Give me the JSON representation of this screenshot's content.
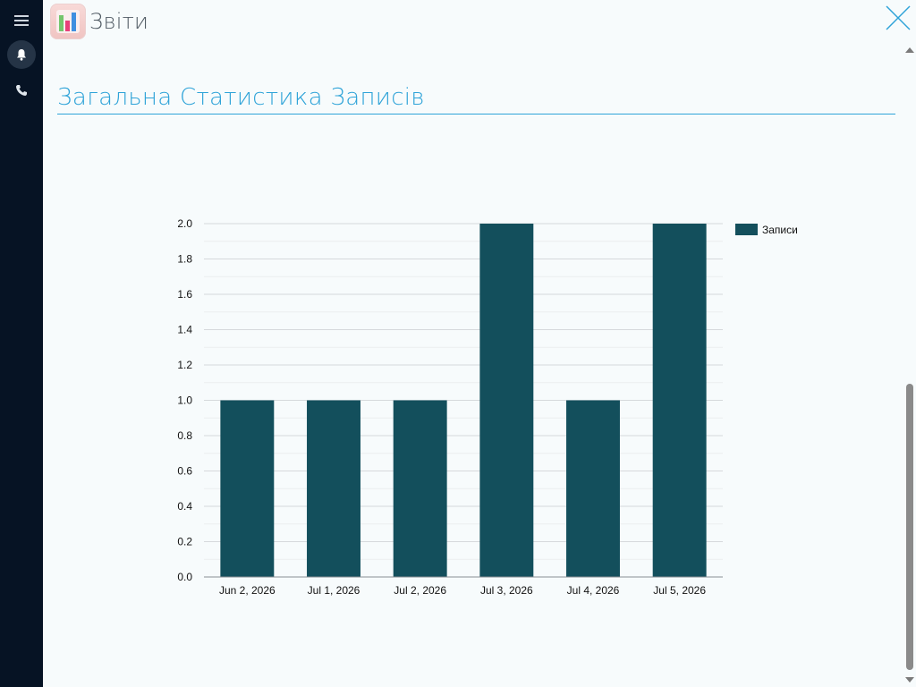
{
  "header": {
    "title": "Звіти",
    "icons": [
      "menu-icon",
      "bell-icon",
      "phone-icon",
      "reports-app-icon",
      "close-icon"
    ]
  },
  "section": {
    "title": "Загальна Статистика Записів"
  },
  "colors": {
    "sidebar": "#061324",
    "accent": "#2ea3d8",
    "bar": "#134f5c",
    "background": "#f7fbfc"
  },
  "chart_data": {
    "type": "bar",
    "categories": [
      "Jun 2, 2026",
      "Jul 1, 2026",
      "Jul 2, 2026",
      "Jul 3, 2026",
      "Jul 4, 2026",
      "Jul 5, 2026"
    ],
    "series": [
      {
        "name": "Записи",
        "values": [
          1,
          1,
          1,
          2,
          1,
          2
        ],
        "color": "#134f5c"
      }
    ],
    "ylim": [
      0,
      2
    ],
    "yticks": [
      "0.0",
      "0.2",
      "0.4",
      "0.6",
      "0.8",
      "1.0",
      "1.2",
      "1.4",
      "1.6",
      "1.8",
      "2.0"
    ],
    "grid": true,
    "legend": "right-top",
    "title": "",
    "xlabel": "",
    "ylabel": ""
  }
}
